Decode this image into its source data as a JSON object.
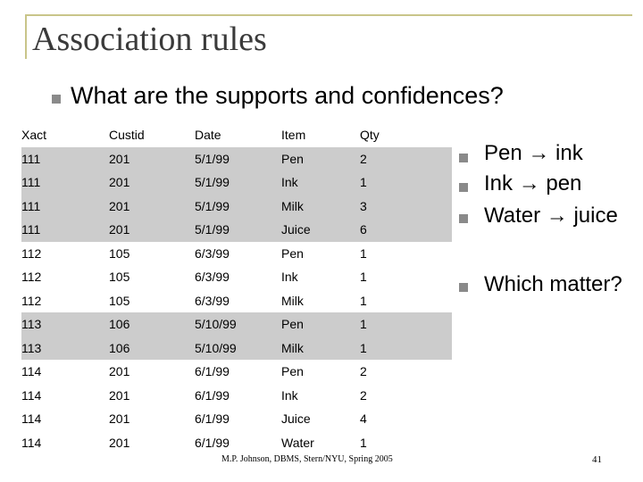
{
  "slide": {
    "title": "Association rules",
    "question": "What are the supports and confidences?"
  },
  "table": {
    "headers": [
      "Xact",
      "Custid",
      "Date",
      "Item",
      "Qty"
    ],
    "rows": [
      [
        "111",
        "201",
        "5/1/99",
        "Pen",
        "2"
      ],
      [
        "111",
        "201",
        "5/1/99",
        "Ink",
        "1"
      ],
      [
        "111",
        "201",
        "5/1/99",
        "Milk",
        "3"
      ],
      [
        "111",
        "201",
        "5/1/99",
        "Juice",
        "6"
      ],
      [
        "112",
        "105",
        "6/3/99",
        "Pen",
        "1"
      ],
      [
        "112",
        "105",
        "6/3/99",
        "Ink",
        "1"
      ],
      [
        "112",
        "105",
        "6/3/99",
        "Milk",
        "1"
      ],
      [
        "113",
        "106",
        "5/10/99",
        "Pen",
        "1"
      ],
      [
        "113",
        "106",
        "5/10/99",
        "Milk",
        "1"
      ],
      [
        "114",
        "201",
        "6/1/99",
        "Pen",
        "2"
      ],
      [
        "114",
        "201",
        "6/1/99",
        "Ink",
        "2"
      ],
      [
        "114",
        "201",
        "6/1/99",
        "Juice",
        "4"
      ],
      [
        "114",
        "201",
        "6/1/99",
        "Water",
        "1"
      ]
    ],
    "highlight_color": "#cccccc"
  },
  "rules": {
    "r1": {
      "from": "Pen",
      "to": "ink"
    },
    "r2": {
      "from": "Ink",
      "to": "pen"
    },
    "r3": {
      "from": "Water",
      "to": "juice"
    },
    "which": "Which matter?"
  },
  "footer": {
    "credit": "M.P. Johnson, DBMS, Stern/NYU, Spring 2005",
    "page": "41"
  },
  "colors": {
    "frame": "#c9c58a",
    "bullet": "#8a8a8a",
    "title": "#3a3a3a"
  }
}
